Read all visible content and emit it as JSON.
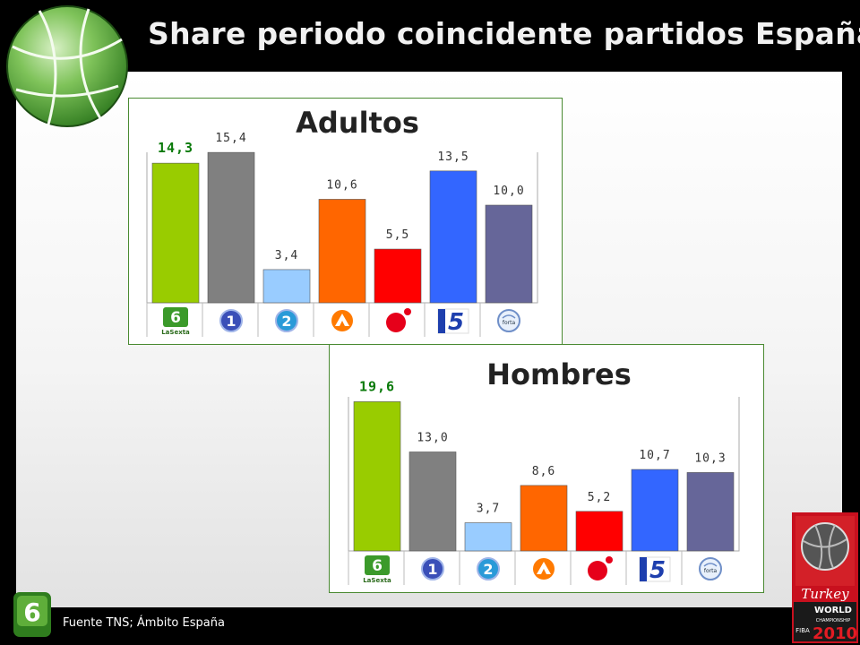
{
  "slide": {
    "title": "Share periodo coincidente partidos España",
    "footer": "Fuente TNS; Ámbito España"
  },
  "brand": {
    "fiba_logo_text": [
      "Turkey",
      "WORLD",
      "CHAMPIONSHIP",
      "FIBA",
      "2010"
    ]
  },
  "colors": {
    "accent_green": "#4a8a32",
    "highlight_label": "#0a7a0a"
  },
  "chart_data": [
    {
      "type": "bar",
      "title": "Adultos",
      "categories": [
        "laSexta",
        "La 1",
        "La 2",
        "Antena 3",
        "Cuatro",
        "Telecinco",
        "Forta"
      ],
      "values": [
        14.3,
        15.4,
        3.4,
        10.6,
        5.5,
        13.5,
        10.0
      ],
      "labels": [
        "14,3",
        "15,4",
        "3,4",
        "10,6",
        "5,5",
        "13,5",
        "10,0"
      ],
      "highlight_index": 0,
      "colors": [
        "#99cc00",
        "#808080",
        "#99ccff",
        "#ff6600",
        "#ff0000",
        "#3366ff",
        "#666699"
      ],
      "icons": [
        "lasexta-logo",
        "la1-logo",
        "la2-logo",
        "antena3-logo",
        "cuatro-logo",
        "telecinco-logo",
        "forta-logo"
      ],
      "ylim": [
        0,
        20
      ],
      "grid": false
    },
    {
      "type": "bar",
      "title": "Hombres",
      "categories": [
        "laSexta",
        "La 1",
        "La 2",
        "Antena 3",
        "Cuatro",
        "Telecinco",
        "Forta"
      ],
      "values": [
        19.6,
        13.0,
        3.7,
        8.6,
        5.2,
        10.7,
        10.3
      ],
      "labels": [
        "19,6",
        "13,0",
        "3,7",
        "8,6",
        "5,2",
        "10,7",
        "10,3"
      ],
      "highlight_index": 0,
      "colors": [
        "#99cc00",
        "#808080",
        "#99ccff",
        "#ff6600",
        "#ff0000",
        "#3366ff",
        "#666699"
      ],
      "icons": [
        "lasexta-logo",
        "la1-logo",
        "la2-logo",
        "antena3-logo",
        "cuatro-logo",
        "telecinco-logo",
        "forta-logo"
      ],
      "ylim": [
        0,
        20
      ],
      "grid": false
    }
  ]
}
